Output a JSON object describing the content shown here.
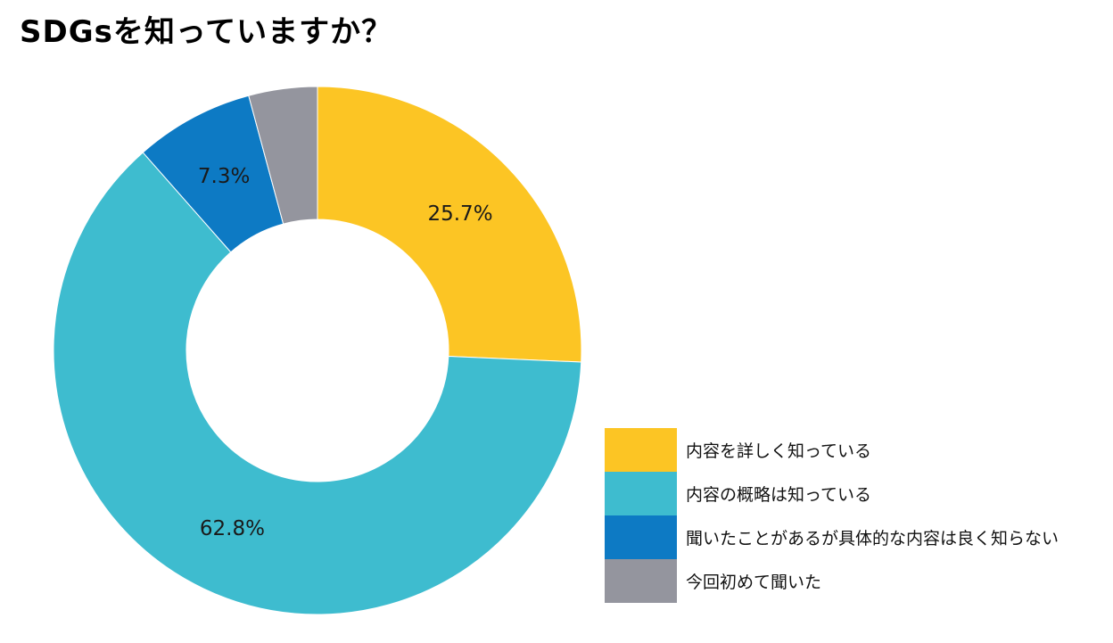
{
  "chart_data": {
    "type": "pie",
    "title": "SDGsを知っていますか？",
    "donut": true,
    "start_angle_deg": 0,
    "direction": "clockwise",
    "legend_position": "bottom-right",
    "slices": [
      {
        "label": "内容を詳しく知っている",
        "value": 25.7,
        "display": "25.7%",
        "color": "#FCC524"
      },
      {
        "label": "内容の概略は知っている",
        "value": 62.8,
        "display": "62.8%",
        "color": "#3EBCCF"
      },
      {
        "label": "聞いたことがあるが具体的な内容は良く知らない",
        "value": 7.3,
        "display": "7.3%",
        "color": "#0D7AC4"
      },
      {
        "label": "今回初めて聞いた",
        "value": 4.2,
        "display": "",
        "color": "#94959E"
      }
    ]
  }
}
